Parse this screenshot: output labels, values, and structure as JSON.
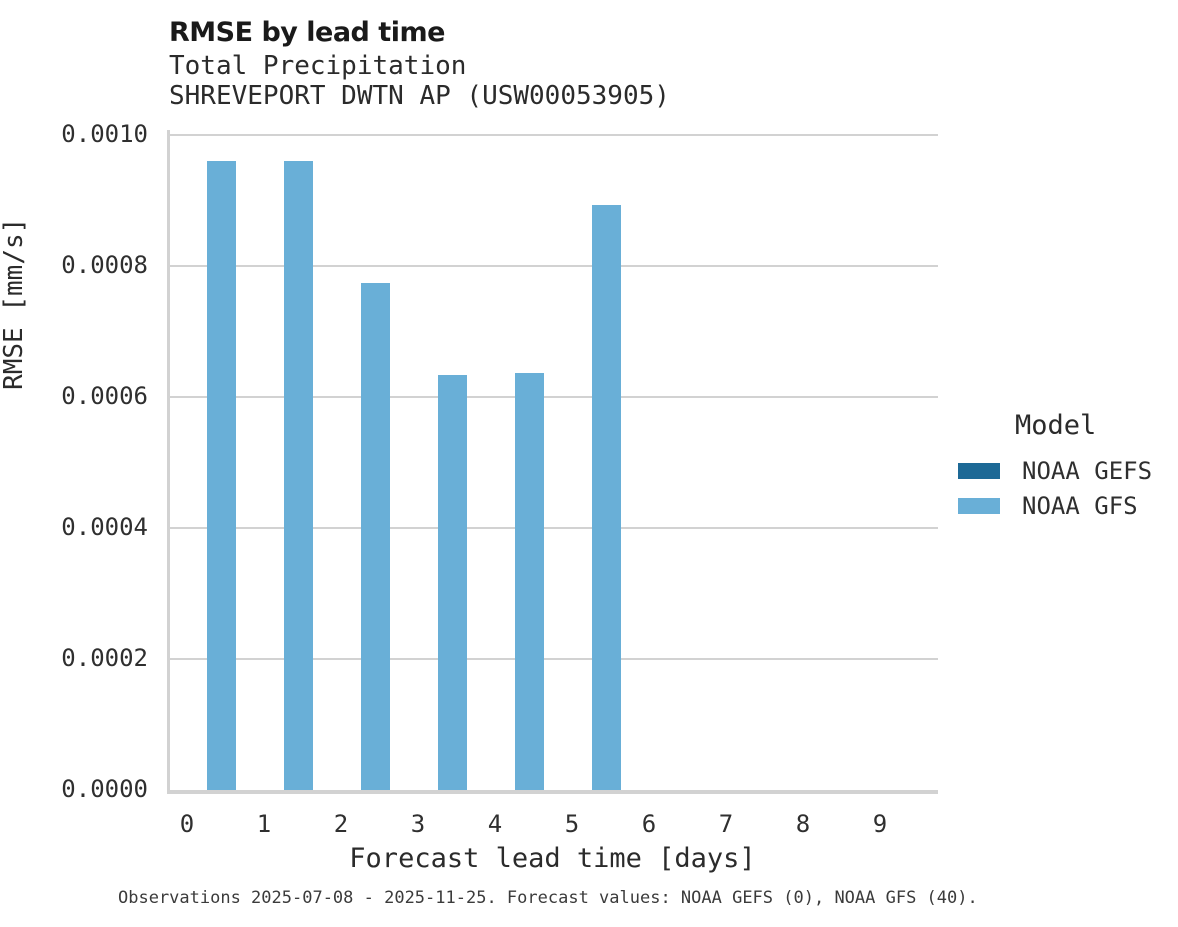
{
  "header": {
    "title": "RMSE by lead time",
    "subtitle_variable": "Total Precipitation",
    "subtitle_station": "SHREVEPORT DWTN AP (USW00053905)"
  },
  "chart_data": {
    "type": "bar",
    "title": "RMSE by lead time",
    "subtitle": [
      "Total Precipitation",
      "SHREVEPORT DWTN AP (USW00053905)"
    ],
    "categories": [
      "0",
      "1",
      "2",
      "3",
      "4",
      "5",
      "6",
      "7",
      "8",
      "9"
    ],
    "series": [
      {
        "name": "NOAA GEFS",
        "color": "#1d6996",
        "values": [
          null,
          null,
          null,
          null,
          null,
          null,
          null,
          null,
          null,
          null
        ]
      },
      {
        "name": "NOAA GFS",
        "color": "#69afd7",
        "values": [
          0.00096,
          0.00096,
          0.000774,
          0.000634,
          0.000637,
          0.000893,
          null,
          null,
          null,
          null
        ]
      }
    ],
    "xlabel": "Forecast lead time [days]",
    "ylabel": "RMSE [mm/s]",
    "ylim": [
      0.0,
      0.001
    ],
    "yticks": [
      0.0,
      0.0002,
      0.0004,
      0.0006,
      0.0008,
      0.001
    ],
    "ytick_labels": [
      "0.0000",
      "0.0002",
      "0.0004",
      "0.0006",
      "0.0008",
      "0.0010"
    ],
    "grid": true,
    "legend_title": "Model",
    "legend_position": "right"
  },
  "legend": {
    "title": "Model",
    "entries": [
      {
        "label": "NOAA GEFS",
        "color": "#1d6996"
      },
      {
        "label": "NOAA GFS",
        "color": "#69afd7"
      }
    ]
  },
  "footer": {
    "caption": "Observations 2025-07-08 - 2025-11-25. Forecast values: NOAA GEFS (0), NOAA GFS (40)."
  },
  "colors": {
    "grid": "#d2d2d2",
    "axis": "#d2d2d2",
    "bar_gfs": "#69afd7",
    "bar_gefs": "#1d6996",
    "text": "#2f2f2f"
  }
}
